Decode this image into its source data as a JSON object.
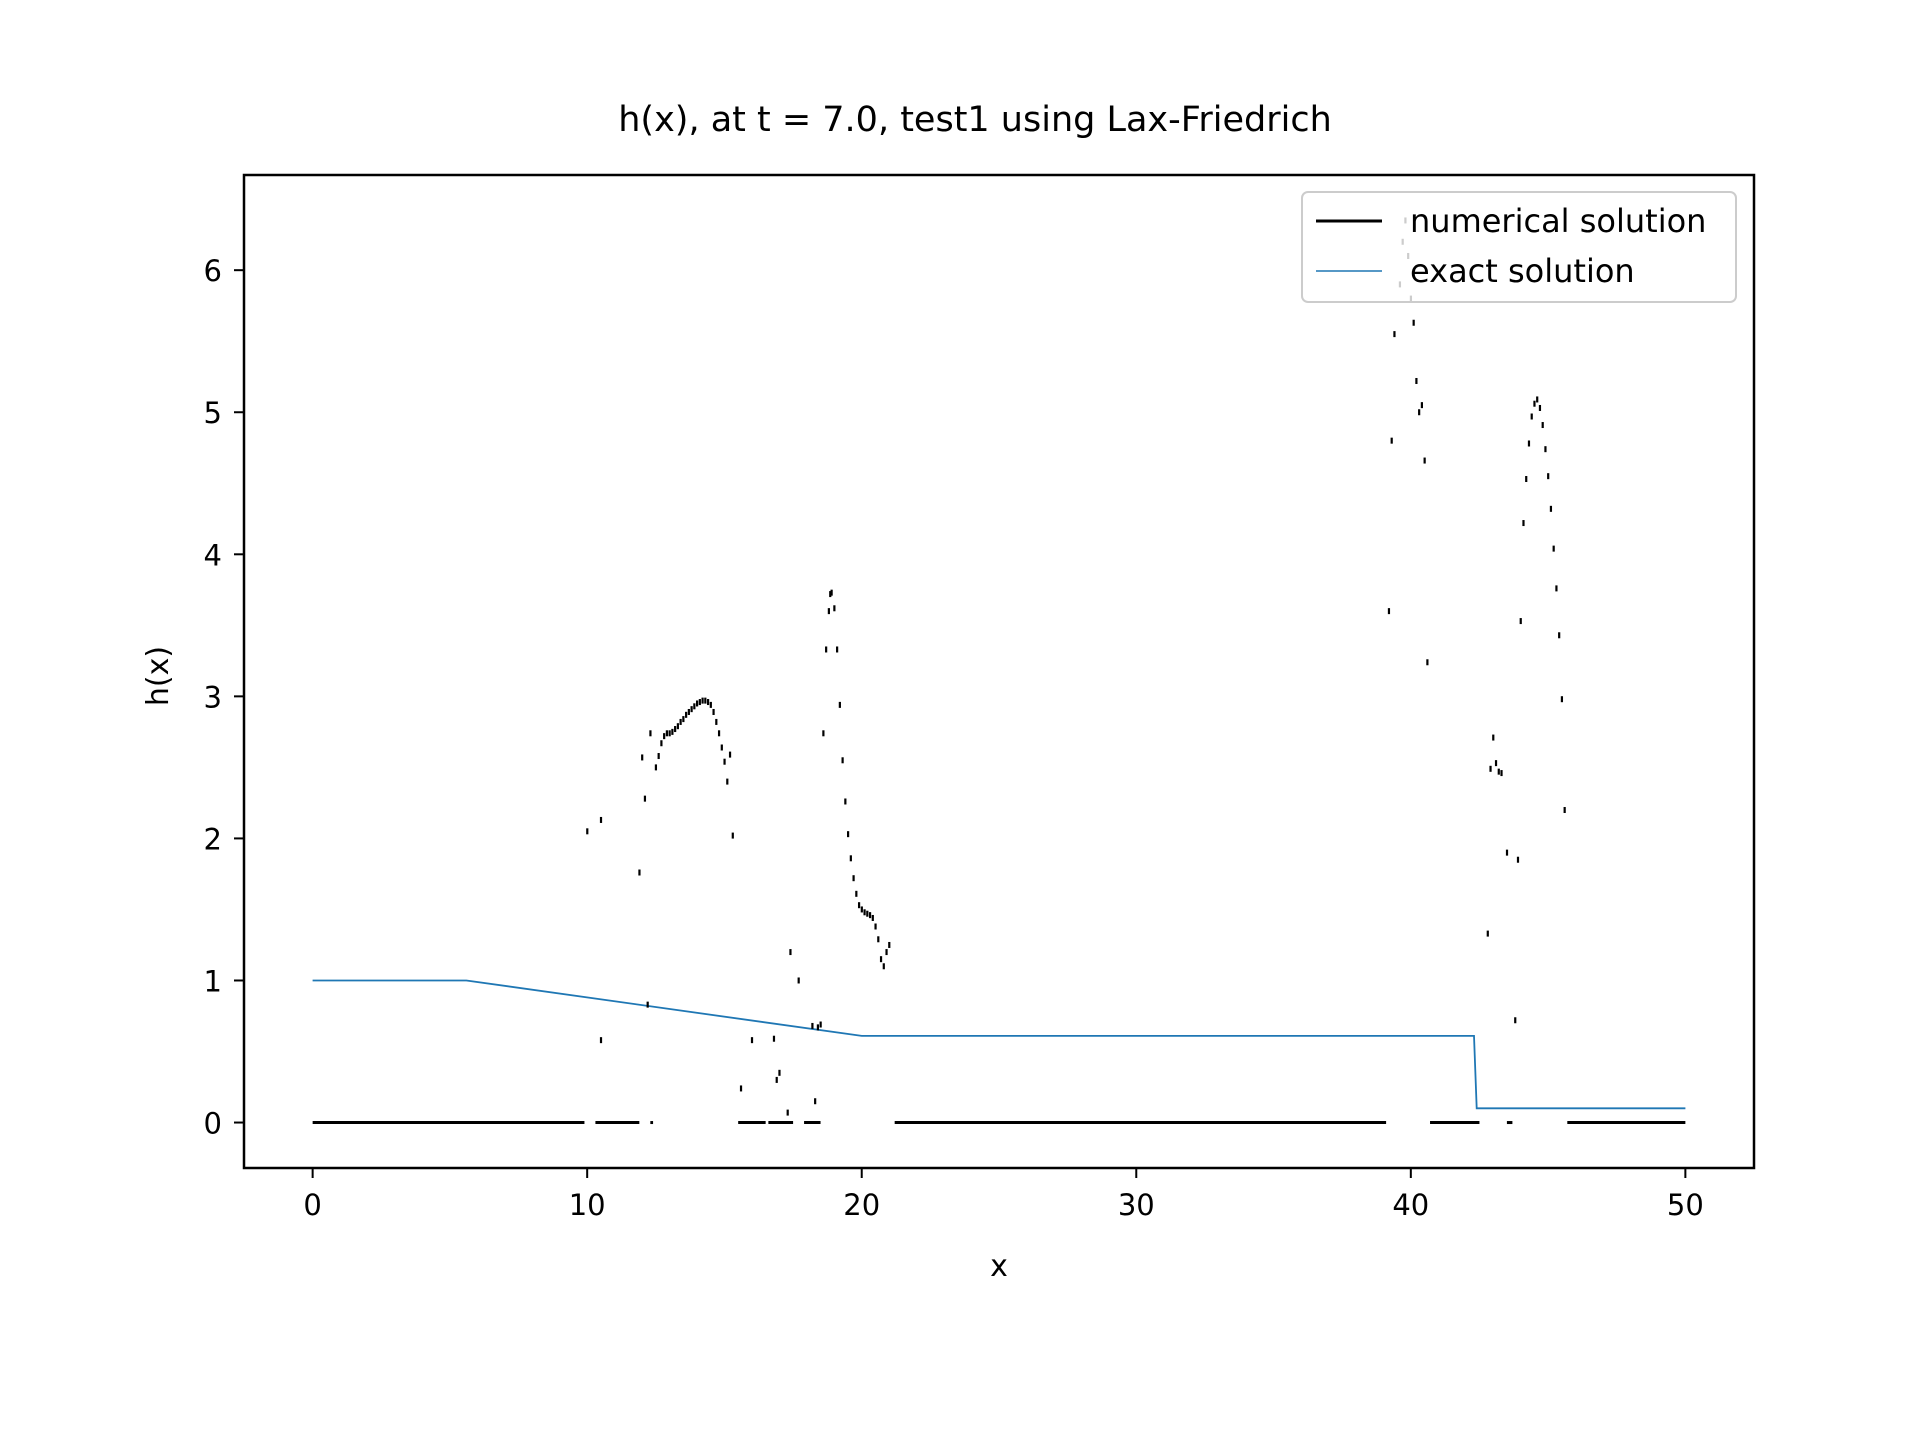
{
  "chart_data": {
    "type": "line",
    "title": "h(x), at t = 7.0, test1 using Lax-Friedrich",
    "xlabel": "x",
    "ylabel": "h(x)",
    "xlim": [
      -2.5,
      52.5
    ],
    "ylim": [
      -0.32,
      6.67
    ],
    "xticks": [
      0,
      10,
      20,
      30,
      40,
      50
    ],
    "xtick_labels": [
      "0",
      "10",
      "20",
      "30",
      "40",
      "50"
    ],
    "yticks": [
      0,
      1,
      2,
      3,
      4,
      5,
      6
    ],
    "ytick_labels": [
      "0",
      "1",
      "2",
      "3",
      "4",
      "5",
      "6"
    ],
    "grid": false,
    "legend_position": "upper right",
    "series": [
      {
        "name": "numerical solution",
        "color": "#000000",
        "style": "dots",
        "baseline_segments": [
          [
            0,
            9.9
          ],
          [
            10.3,
            11.9
          ],
          [
            12.3,
            12.4
          ],
          [
            15.5,
            16.5
          ],
          [
            16.6,
            17.5
          ],
          [
            17.9,
            18.5
          ],
          [
            21.2,
            39.1
          ],
          [
            40.7,
            42.5
          ],
          [
            43.5,
            43.7
          ],
          [
            45.7,
            50
          ]
        ],
        "points": [
          [
            10.0,
            2.05
          ],
          [
            10.5,
            2.13
          ],
          [
            10.5,
            0.58
          ],
          [
            11.9,
            1.76
          ],
          [
            12.0,
            2.57
          ],
          [
            12.1,
            2.28
          ],
          [
            12.2,
            0.83
          ],
          [
            12.3,
            2.74
          ],
          [
            12.5,
            2.5
          ],
          [
            12.6,
            2.58
          ],
          [
            12.7,
            2.67
          ],
          [
            12.8,
            2.72
          ],
          [
            12.9,
            2.74
          ],
          [
            13.0,
            2.74
          ],
          [
            13.1,
            2.75
          ],
          [
            13.2,
            2.77
          ],
          [
            13.3,
            2.79
          ],
          [
            13.4,
            2.82
          ],
          [
            13.5,
            2.84
          ],
          [
            13.6,
            2.87
          ],
          [
            13.7,
            2.89
          ],
          [
            13.8,
            2.91
          ],
          [
            13.9,
            2.93
          ],
          [
            14.0,
            2.95
          ],
          [
            14.1,
            2.96
          ],
          [
            14.2,
            2.97
          ],
          [
            14.3,
            2.97
          ],
          [
            14.4,
            2.96
          ],
          [
            14.5,
            2.94
          ],
          [
            14.6,
            2.89
          ],
          [
            14.7,
            2.82
          ],
          [
            14.8,
            2.74
          ],
          [
            14.9,
            2.64
          ],
          [
            15.0,
            2.54
          ],
          [
            15.1,
            2.4
          ],
          [
            15.2,
            2.59
          ],
          [
            15.3,
            2.02
          ],
          [
            15.6,
            0.24
          ],
          [
            16.0,
            0.58
          ],
          [
            16.8,
            0.59
          ],
          [
            16.9,
            0.3
          ],
          [
            17.0,
            0.35
          ],
          [
            17.3,
            0.07
          ],
          [
            17.4,
            1.2
          ],
          [
            17.7,
            1.0
          ],
          [
            18.2,
            0.68
          ],
          [
            18.3,
            0.15
          ],
          [
            18.4,
            0.67
          ],
          [
            18.5,
            0.69
          ],
          [
            18.6,
            2.74
          ],
          [
            18.7,
            3.33
          ],
          [
            18.8,
            3.6
          ],
          [
            18.85,
            3.72
          ],
          [
            18.9,
            3.73
          ],
          [
            19.0,
            3.62
          ],
          [
            19.1,
            3.33
          ],
          [
            19.2,
            2.94
          ],
          [
            19.3,
            2.55
          ],
          [
            19.4,
            2.26
          ],
          [
            19.5,
            2.03
          ],
          [
            19.6,
            1.86
          ],
          [
            19.7,
            1.72
          ],
          [
            19.8,
            1.61
          ],
          [
            19.9,
            1.53
          ],
          [
            20.0,
            1.5
          ],
          [
            20.1,
            1.48
          ],
          [
            20.2,
            1.47
          ],
          [
            20.3,
            1.46
          ],
          [
            20.4,
            1.44
          ],
          [
            20.5,
            1.38
          ],
          [
            20.6,
            1.29
          ],
          [
            20.7,
            1.15
          ],
          [
            20.8,
            1.1
          ],
          [
            20.9,
            1.2
          ],
          [
            21.0,
            1.25
          ],
          [
            39.2,
            3.6
          ],
          [
            39.3,
            4.8
          ],
          [
            39.4,
            5.55
          ],
          [
            39.6,
            5.9
          ],
          [
            39.7,
            6.2
          ],
          [
            39.8,
            6.35
          ],
          [
            39.9,
            6.1
          ],
          [
            40.0,
            5.8
          ],
          [
            40.1,
            5.63
          ],
          [
            40.2,
            5.22
          ],
          [
            40.3,
            5.0
          ],
          [
            40.4,
            5.05
          ],
          [
            40.5,
            4.66
          ],
          [
            40.6,
            3.24
          ],
          [
            42.8,
            1.33
          ],
          [
            42.9,
            2.49
          ],
          [
            43.0,
            2.71
          ],
          [
            43.1,
            2.53
          ],
          [
            43.2,
            2.47
          ],
          [
            43.3,
            2.46
          ],
          [
            43.5,
            1.9
          ],
          [
            43.8,
            0.72
          ],
          [
            43.9,
            1.85
          ],
          [
            44.0,
            3.53
          ],
          [
            44.1,
            4.22
          ],
          [
            44.2,
            4.53
          ],
          [
            44.3,
            4.78
          ],
          [
            44.4,
            4.97
          ],
          [
            44.5,
            5.06
          ],
          [
            44.6,
            5.09
          ],
          [
            44.7,
            5.03
          ],
          [
            44.8,
            4.91
          ],
          [
            44.9,
            4.74
          ],
          [
            45.0,
            4.55
          ],
          [
            45.1,
            4.32
          ],
          [
            45.2,
            4.04
          ],
          [
            45.3,
            3.76
          ],
          [
            45.4,
            3.43
          ],
          [
            45.5,
            2.98
          ],
          [
            45.6,
            2.2
          ]
        ]
      },
      {
        "name": "exact solution",
        "color": "#1f77b4",
        "style": "line",
        "x": [
          0,
          5.6,
          20,
          42.3,
          42.4,
          50
        ],
        "y": [
          1.0,
          1.0,
          0.61,
          0.61,
          0.1,
          0.1
        ]
      }
    ]
  }
}
